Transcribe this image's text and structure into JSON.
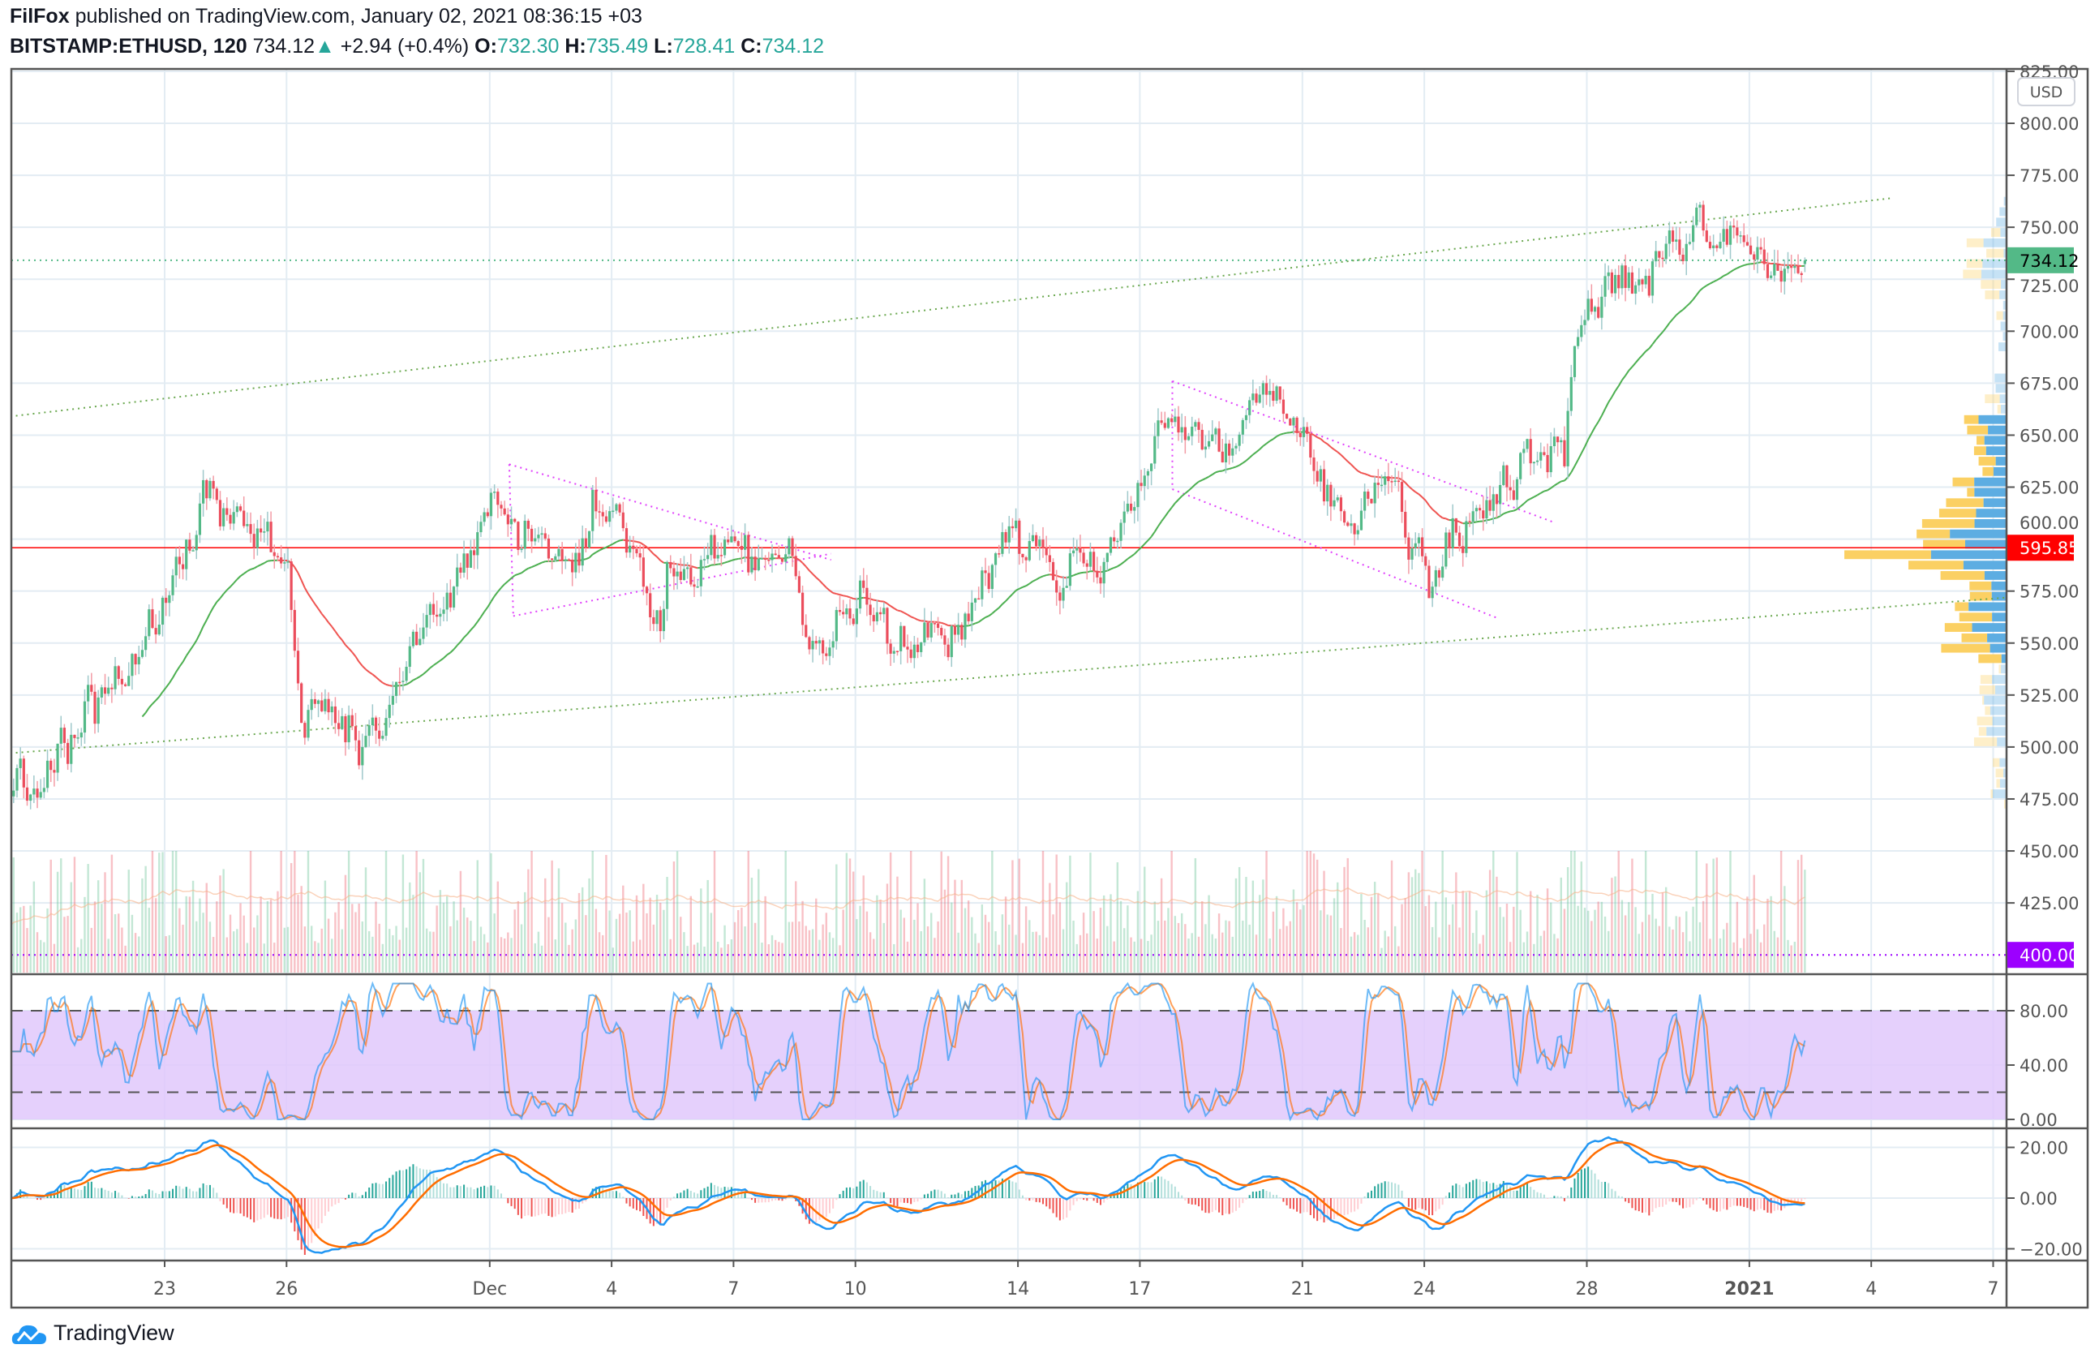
{
  "header": {
    "author": "FilFox",
    "published": "published on TradingView.com, January 02, 2021 08:36:15 +03",
    "symbol": "BITSTAMP:ETHUSD, 120",
    "last": "734.12",
    "change": "+2.94 (+0.4%)",
    "o_label": "O:",
    "o": "732.30",
    "h_label": "H:",
    "h": "735.49",
    "l_label": "L:",
    "l": "728.41",
    "c_label": "C:",
    "c": "734.12"
  },
  "currency_button": "USD",
  "footer": {
    "brand": "TradingView"
  },
  "colors": {
    "up": "#53b987",
    "down": "#eb4d5c",
    "up_wick": "#9fc9cb",
    "down_wick": "#f39ba5",
    "ma": "#4caf50",
    "ma_below": "#ef5350",
    "trend_green": "#6aa84f",
    "trend_magenta": "#e040fb",
    "last_badge": "#53b987",
    "level_red": "#ff0000",
    "level_purple": "#9c00ff",
    "stoch_k": "#2196f3",
    "stoch_d": "#ff6d00",
    "rsi_band": "#e1c8fb",
    "macd": "#2196f3",
    "signal": "#ff6d00",
    "vp_up": "#5dade2",
    "vp_down": "#fbd063"
  },
  "chart_data": {
    "type": "candlestick",
    "title": "BITSTAMP:ETHUSD, 120",
    "x_unit": "days since Nov 23 2020",
    "bars_per_day": 12,
    "start_day": -3.8,
    "end_day": 40.33,
    "price_waypoints": [
      [
        -3.72,
        473
      ],
      [
        -2.73,
        489
      ],
      [
        -2.07,
        512
      ],
      [
        -0.76,
        544
      ],
      [
        0,
        570
      ],
      [
        0.56,
        602
      ],
      [
        1.22,
        618
      ],
      [
        2.04,
        605
      ],
      [
        2.7,
        595
      ],
      [
        3.03,
        576
      ],
      [
        3.36,
        512
      ],
      [
        3.85,
        509
      ],
      [
        4.67,
        505
      ],
      [
        5.49,
        515
      ],
      [
        6.15,
        550
      ],
      [
        6.97,
        576
      ],
      [
        7.8,
        605
      ],
      [
        8.29,
        611
      ],
      [
        8.78,
        595
      ],
      [
        9.77,
        592
      ],
      [
        10.76,
        615
      ],
      [
        11.41,
        586
      ],
      [
        12.07,
        573
      ],
      [
        13.06,
        598
      ],
      [
        14.38,
        595
      ],
      [
        15.36,
        589
      ],
      [
        15.86,
        557
      ],
      [
        16.35,
        544
      ],
      [
        17.01,
        570
      ],
      [
        17.66,
        557
      ],
      [
        18.32,
        544
      ],
      [
        19.64,
        560
      ],
      [
        20.46,
        586
      ],
      [
        20.95,
        592
      ],
      [
        21.94,
        586
      ],
      [
        23.26,
        589
      ],
      [
        23.75,
        621
      ],
      [
        24.57,
        653
      ],
      [
        25.56,
        650
      ],
      [
        26.71,
        660
      ],
      [
        27.53,
        653
      ],
      [
        28.36,
        640
      ],
      [
        28.68,
        611
      ],
      [
        29.34,
        602
      ],
      [
        30.0,
        631
      ],
      [
        30.49,
        608
      ],
      [
        31.15,
        579
      ],
      [
        31.81,
        602
      ],
      [
        32.47,
        621
      ],
      [
        33.45,
        631
      ],
      [
        34.44,
        644
      ],
      [
        34.77,
        698
      ],
      [
        35.43,
        734
      ],
      [
        36.09,
        711
      ],
      [
        37.07,
        734
      ],
      [
        37.89,
        750
      ],
      [
        38.72,
        740
      ],
      [
        39.7,
        731
      ],
      [
        40.2,
        734
      ]
    ],
    "last_candle": {
      "open": 732.3,
      "high": 735.49,
      "low": 728.41,
      "close": 734.12
    },
    "moving_average_period": 40,
    "price_axis": {
      "ticks": [
        "825.00",
        "800.00",
        "775.00",
        "750.00",
        "725.00",
        "700.00",
        "675.00",
        "650.00",
        "625.00",
        "600.00",
        "575.00",
        "550.00",
        "525.00",
        "500.00",
        "475.00",
        "450.00",
        "425.00"
      ],
      "range": [
        385,
        835
      ]
    },
    "levels": [
      {
        "name": "last-price",
        "value": 734.12,
        "label": "734.12",
        "style": "dotted"
      },
      {
        "name": "support-resistance",
        "value": 595.85,
        "label": "595.85",
        "style": "solid"
      },
      {
        "name": "target",
        "value": 400.0,
        "label": "400.00",
        "style": "dotted"
      }
    ],
    "trendlines": [
      {
        "name": "upper-channel",
        "color": "green",
        "points": [
          [
            -3.8,
            659
          ],
          [
            42.5,
            764
          ]
        ]
      },
      {
        "name": "lower-channel",
        "color": "green",
        "points": [
          [
            -3.8,
            497
          ],
          [
            45.4,
            572
          ]
        ]
      },
      {
        "name": "triangle-top",
        "color": "magenta",
        "points": [
          [
            8.48,
            636
          ],
          [
            16.4,
            590
          ]
        ]
      },
      {
        "name": "triangle-bottom",
        "color": "magenta",
        "points": [
          [
            8.58,
            563
          ],
          [
            16.4,
            593
          ]
        ]
      },
      {
        "name": "triangle-left",
        "color": "magenta",
        "points": [
          [
            8.48,
            636
          ],
          [
            8.58,
            563
          ]
        ]
      },
      {
        "name": "flag-top",
        "color": "magenta",
        "points": [
          [
            24.8,
            676
          ],
          [
            34.2,
            608
          ]
        ]
      },
      {
        "name": "flag-bottom",
        "color": "magenta",
        "points": [
          [
            24.8,
            624
          ],
          [
            32.8,
            562
          ]
        ]
      },
      {
        "name": "flag-left",
        "color": "magenta",
        "points": [
          [
            24.8,
            676
          ],
          [
            24.8,
            624
          ]
        ]
      }
    ],
    "time_axis": [
      {
        "label": "23",
        "day": 0
      },
      {
        "label": "26",
        "day": 3
      },
      {
        "label": "Dec",
        "day": 8
      },
      {
        "label": "4",
        "day": 11
      },
      {
        "label": "7",
        "day": 14
      },
      {
        "label": "10",
        "day": 17
      },
      {
        "label": "14",
        "day": 21
      },
      {
        "label": "17",
        "day": 24
      },
      {
        "label": "21",
        "day": 28
      },
      {
        "label": "24",
        "day": 31
      },
      {
        "label": "28",
        "day": 35
      },
      {
        "label": "2021",
        "day": 39
      },
      {
        "label": "4",
        "day": 42
      },
      {
        "label": "7",
        "day": 45
      }
    ],
    "stoch_rsi": {
      "ticks": [
        "80.00",
        "40.00",
        "0.00"
      ],
      "tick_values": [
        80,
        40,
        0
      ],
      "band": [
        20,
        80
      ],
      "range": [
        0,
        100
      ]
    },
    "macd": {
      "ticks": [
        "20.00",
        "0.00",
        "−20.00"
      ],
      "tick_values": [
        20,
        0,
        -20
      ],
      "fast": 12,
      "slow": 26,
      "signal": 9
    }
  }
}
